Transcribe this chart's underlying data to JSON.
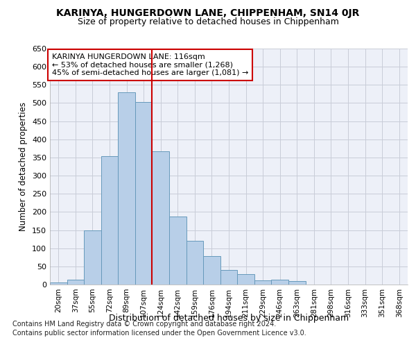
{
  "title": "KARINYA, HUNGERDOWN LANE, CHIPPENHAM, SN14 0JR",
  "subtitle": "Size of property relative to detached houses in Chippenham",
  "xlabel": "Distribution of detached houses by size in Chippenham",
  "ylabel": "Number of detached properties",
  "footnote1": "Contains HM Land Registry data © Crown copyright and database right 2024.",
  "footnote2": "Contains public sector information licensed under the Open Government Licence v3.0.",
  "annotation_line1": "KARINYA HUNGERDOWN LANE: 116sqm",
  "annotation_line2": "← 53% of detached houses are smaller (1,268)",
  "annotation_line3": "45% of semi-detached houses are larger (1,081) →",
  "vline_color": "#cc0000",
  "bar_color": "#b8cfe8",
  "bar_edge_color": "#6699bb",
  "categories": [
    "20sqm",
    "37sqm",
    "55sqm",
    "72sqm",
    "89sqm",
    "107sqm",
    "124sqm",
    "142sqm",
    "159sqm",
    "176sqm",
    "194sqm",
    "211sqm",
    "229sqm",
    "246sqm",
    "263sqm",
    "281sqm",
    "298sqm",
    "316sqm",
    "333sqm",
    "351sqm",
    "368sqm"
  ],
  "values": [
    5,
    13,
    150,
    353,
    530,
    503,
    367,
    188,
    120,
    78,
    40,
    28,
    12,
    13,
    10,
    0,
    0,
    0,
    0,
    0,
    0
  ],
  "ylim": [
    0,
    650
  ],
  "yticks": [
    0,
    50,
    100,
    150,
    200,
    250,
    300,
    350,
    400,
    450,
    500,
    550,
    600,
    650
  ],
  "background_color": "#edf0f8",
  "grid_color": "#c8ccd8",
  "title_fontsize": 10,
  "subtitle_fontsize": 9
}
